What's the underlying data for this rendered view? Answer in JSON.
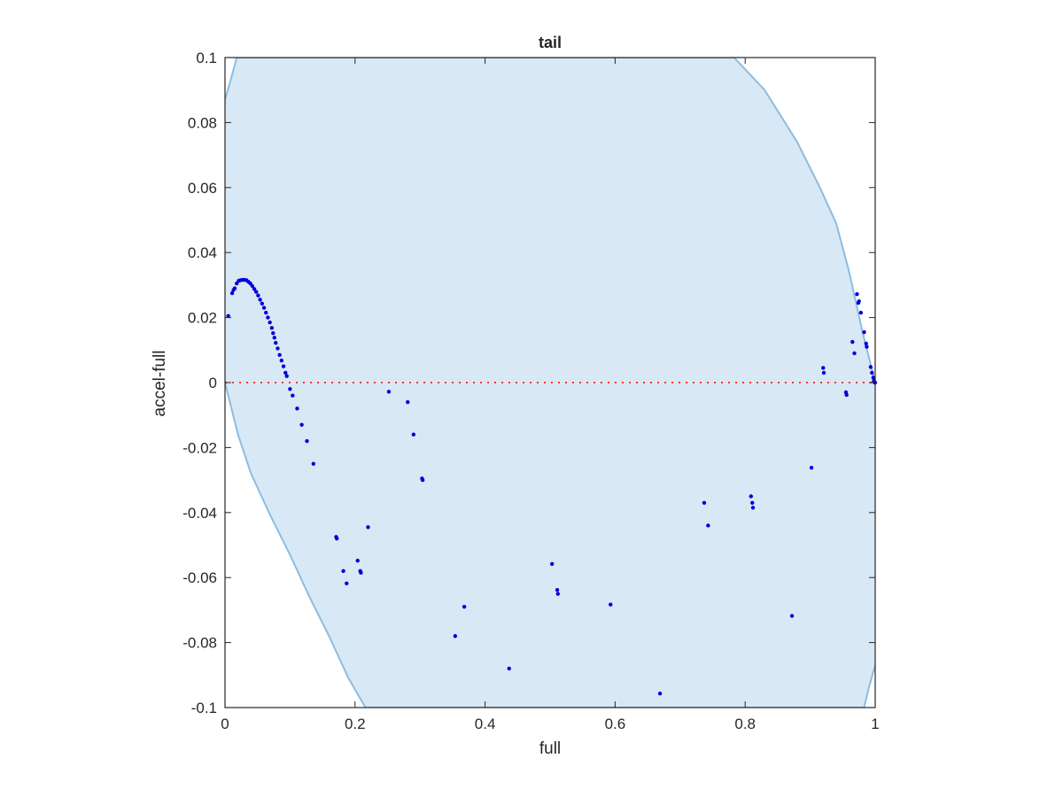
{
  "chart_data": {
    "type": "scatter",
    "title": "tail",
    "xlabel": "full",
    "ylabel": "accel-full",
    "xlim": [
      0,
      1
    ],
    "ylim": [
      -0.1,
      0.1
    ],
    "x_ticks": [
      0,
      0.2,
      0.4,
      0.6,
      0.8,
      1
    ],
    "x_tick_labels": [
      "0",
      "0.2",
      "0.4",
      "0.6",
      "0.8",
      "1"
    ],
    "y_ticks": [
      -0.1,
      -0.08,
      -0.06,
      -0.04,
      -0.02,
      0,
      0.02,
      0.04,
      0.06,
      0.08,
      0.1
    ],
    "y_tick_labels": [
      "-0.1",
      "-0.08",
      "-0.06",
      "-0.04",
      "-0.02",
      "0",
      "0.02",
      "0.04",
      "0.06",
      "0.08",
      "0.1"
    ],
    "grid": false,
    "colors": {
      "points": "#0000dd",
      "region_fill": "#d9e8f5",
      "region_edge": "#8bbde0",
      "zero_line": "#ff3333",
      "axes": "#262626"
    },
    "region_boundary": {
      "upper": [
        [
          0.0,
          0.087
        ],
        [
          0.01,
          0.094
        ],
        [
          0.018,
          0.1
        ],
        [
          0.783,
          0.1
        ],
        [
          0.83,
          0.09
        ],
        [
          0.88,
          0.074
        ],
        [
          0.915,
          0.06
        ],
        [
          0.94,
          0.049
        ],
        [
          0.96,
          0.034
        ],
        [
          0.98,
          0.016
        ],
        [
          1.0,
          0.0
        ]
      ],
      "lower": [
        [
          0.0,
          0.0
        ],
        [
          0.02,
          -0.016
        ],
        [
          0.04,
          -0.028
        ],
        [
          0.07,
          -0.041
        ],
        [
          0.1,
          -0.053
        ],
        [
          0.13,
          -0.066
        ],
        [
          0.16,
          -0.078
        ],
        [
          0.19,
          -0.091
        ],
        [
          0.216,
          -0.1
        ],
        [
          0.983,
          -0.1
        ],
        [
          0.99,
          -0.094
        ],
        [
          1.0,
          -0.087
        ]
      ]
    },
    "zero_line": {
      "y": 0,
      "style": "dotted"
    },
    "series": [
      {
        "points": [
          [
            0.005,
            0.0205
          ],
          [
            0.011,
            0.0275
          ],
          [
            0.013,
            0.0285
          ],
          [
            0.015,
            0.029
          ],
          [
            0.018,
            0.0305
          ],
          [
            0.021,
            0.0313
          ],
          [
            0.024,
            0.0315
          ],
          [
            0.027,
            0.0316
          ],
          [
            0.03,
            0.0316
          ],
          [
            0.033,
            0.0315
          ],
          [
            0.036,
            0.031
          ],
          [
            0.039,
            0.0305
          ],
          [
            0.042,
            0.0297
          ],
          [
            0.045,
            0.0288
          ],
          [
            0.048,
            0.0279
          ],
          [
            0.051,
            0.0268
          ],
          [
            0.054,
            0.0255
          ],
          [
            0.057,
            0.0243
          ],
          [
            0.06,
            0.023
          ],
          [
            0.063,
            0.0215
          ],
          [
            0.066,
            0.02
          ],
          [
            0.069,
            0.0185
          ],
          [
            0.072,
            0.0168
          ],
          [
            0.074,
            0.0152
          ],
          [
            0.076,
            0.0138
          ],
          [
            0.078,
            0.0122
          ],
          [
            0.081,
            0.0105
          ],
          [
            0.084,
            0.0085
          ],
          [
            0.087,
            0.0068
          ],
          [
            0.09,
            0.005
          ],
          [
            0.093,
            0.003
          ],
          [
            0.095,
            0.002
          ],
          [
            0.1,
            -0.002
          ],
          [
            0.104,
            -0.004
          ],
          [
            0.111,
            -0.008
          ],
          [
            0.118,
            -0.013
          ],
          [
            0.126,
            -0.018
          ],
          [
            0.136,
            -0.025
          ],
          [
            0.171,
            -0.0475
          ],
          [
            0.172,
            -0.048
          ],
          [
            0.182,
            -0.058
          ],
          [
            0.187,
            -0.0618
          ],
          [
            0.204,
            -0.0548
          ],
          [
            0.208,
            -0.058
          ],
          [
            0.209,
            -0.0585
          ],
          [
            0.22,
            -0.0445
          ],
          [
            0.252,
            -0.0028
          ],
          [
            0.281,
            -0.006
          ],
          [
            0.29,
            -0.016
          ],
          [
            0.303,
            -0.0295
          ],
          [
            0.304,
            -0.03
          ],
          [
            0.354,
            -0.078
          ],
          [
            0.368,
            -0.069
          ],
          [
            0.437,
            -0.088
          ],
          [
            0.503,
            -0.0558
          ],
          [
            0.511,
            -0.0638
          ],
          [
            0.512,
            -0.065
          ],
          [
            0.593,
            -0.0683
          ],
          [
            0.669,
            -0.0957
          ],
          [
            0.737,
            -0.037
          ],
          [
            0.743,
            -0.044
          ],
          [
            0.809,
            -0.035
          ],
          [
            0.811,
            -0.037
          ],
          [
            0.812,
            -0.0385
          ],
          [
            0.872,
            -0.0718
          ],
          [
            0.902,
            -0.0262
          ],
          [
            0.92,
            0.0045
          ],
          [
            0.921,
            0.003
          ],
          [
            0.955,
            -0.003
          ],
          [
            0.956,
            -0.0038
          ],
          [
            0.965,
            0.0125
          ],
          [
            0.968,
            0.009
          ],
          [
            0.972,
            0.0272
          ],
          [
            0.974,
            0.0245
          ],
          [
            0.975,
            0.025
          ],
          [
            0.978,
            0.0215
          ],
          [
            0.983,
            0.0155
          ],
          [
            0.986,
            0.012
          ],
          [
            0.987,
            0.011
          ],
          [
            0.993,
            0.0048
          ],
          [
            0.995,
            0.003
          ],
          [
            0.997,
            0.0015
          ],
          [
            0.998,
            0.0005
          ],
          [
            0.999,
            0.0
          ],
          [
            1.0,
            0.0
          ]
        ]
      }
    ]
  }
}
